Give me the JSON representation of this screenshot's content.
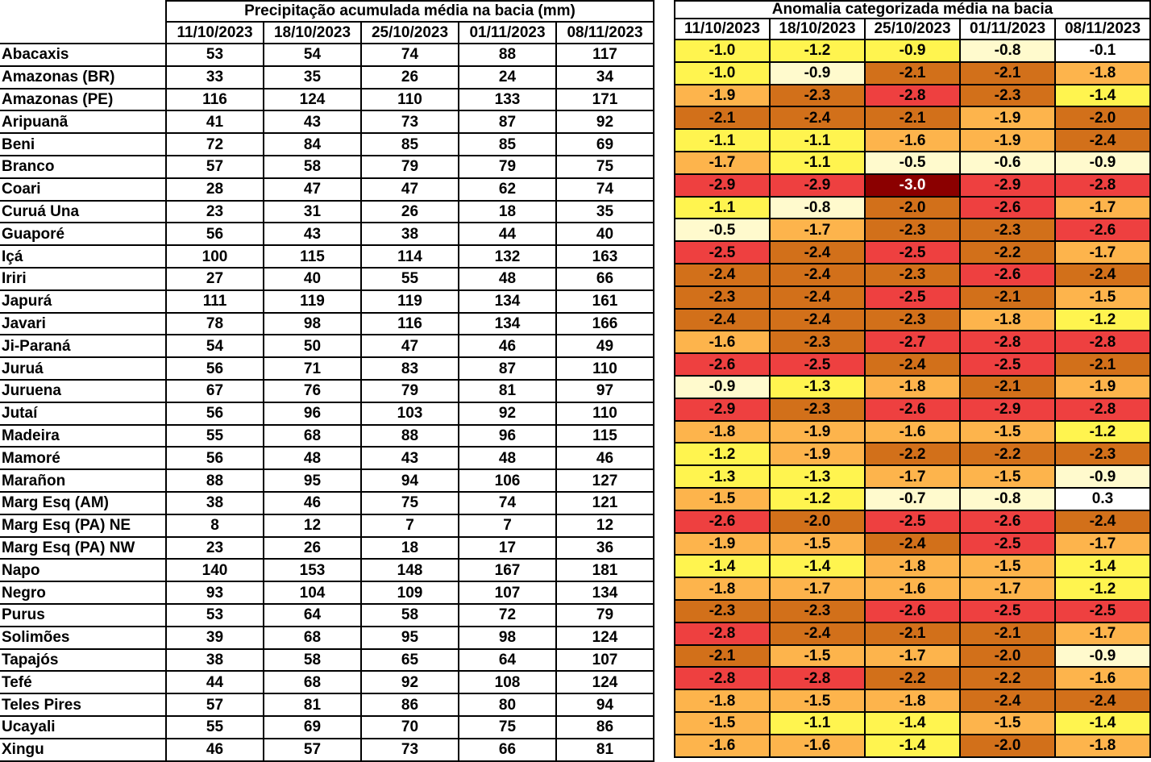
{
  "precip_table": {
    "title": "Precipitação acumulada média na bacia (mm)",
    "dates": [
      "11/10/2023",
      "18/10/2023",
      "25/10/2023",
      "01/11/2023",
      "08/11/2023"
    ]
  },
  "anomaly_table": {
    "title": "Anomalia categorizada média na bacia",
    "dates": [
      "11/10/2023",
      "18/10/2023",
      "25/10/2023",
      "01/11/2023",
      "08/11/2023"
    ]
  },
  "category_colors": {
    "white": "#ffffff",
    "cream": "#fffacd",
    "yellow": "#fff44f",
    "lorange": "#fdb44c",
    "dorange": "#d2701a",
    "red": "#ee4040",
    "dred": "#8b0000"
  },
  "rows": [
    {
      "name": "Abacaxis",
      "precip": [
        "53",
        "54",
        "74",
        "88",
        "117"
      ],
      "anom": [
        "-1.0",
        "-1.2",
        "-0.9",
        "-0.8",
        "-0.1"
      ],
      "cat": [
        "yellow",
        "yellow",
        "yellow",
        "cream",
        "white"
      ]
    },
    {
      "name": "Amazonas (BR)",
      "precip": [
        "33",
        "35",
        "26",
        "24",
        "34"
      ],
      "anom": [
        "-1.0",
        "-0.9",
        "-2.1",
        "-2.1",
        "-1.8"
      ],
      "cat": [
        "yellow",
        "cream",
        "dorange",
        "dorange",
        "lorange"
      ]
    },
    {
      "name": "Amazonas (PE)",
      "precip": [
        "116",
        "124",
        "110",
        "133",
        "171"
      ],
      "anom": [
        "-1.9",
        "-2.3",
        "-2.8",
        "-2.3",
        "-1.4"
      ],
      "cat": [
        "lorange",
        "dorange",
        "red",
        "dorange",
        "yellow"
      ]
    },
    {
      "name": "Aripuanã",
      "precip": [
        "41",
        "43",
        "73",
        "87",
        "92"
      ],
      "anom": [
        "-2.1",
        "-2.4",
        "-2.1",
        "-1.9",
        "-2.0"
      ],
      "cat": [
        "dorange",
        "dorange",
        "dorange",
        "lorange",
        "dorange"
      ]
    },
    {
      "name": "Beni",
      "precip": [
        "72",
        "84",
        "85",
        "85",
        "69"
      ],
      "anom": [
        "-1.1",
        "-1.1",
        "-1.6",
        "-1.9",
        "-2.4"
      ],
      "cat": [
        "yellow",
        "yellow",
        "lorange",
        "lorange",
        "dorange"
      ]
    },
    {
      "name": "Branco",
      "precip": [
        "57",
        "58",
        "79",
        "79",
        "75"
      ],
      "anom": [
        "-1.7",
        "-1.1",
        "-0.5",
        "-0.6",
        "-0.9"
      ],
      "cat": [
        "lorange",
        "yellow",
        "cream",
        "cream",
        "cream"
      ]
    },
    {
      "name": "Coari",
      "precip": [
        "28",
        "47",
        "47",
        "62",
        "74"
      ],
      "anom": [
        "-2.9",
        "-2.9",
        "-3.0",
        "-2.9",
        "-2.8"
      ],
      "cat": [
        "red",
        "red",
        "dred",
        "red",
        "red"
      ]
    },
    {
      "name": "Curuá Una",
      "precip": [
        "23",
        "31",
        "26",
        "18",
        "35"
      ],
      "anom": [
        "-1.1",
        "-0.8",
        "-2.0",
        "-2.6",
        "-1.7"
      ],
      "cat": [
        "yellow",
        "cream",
        "dorange",
        "red",
        "lorange"
      ]
    },
    {
      "name": "Guaporé",
      "precip": [
        "56",
        "43",
        "38",
        "44",
        "40"
      ],
      "anom": [
        "-0.5",
        "-1.7",
        "-2.3",
        "-2.3",
        "-2.6"
      ],
      "cat": [
        "cream",
        "lorange",
        "dorange",
        "dorange",
        "red"
      ]
    },
    {
      "name": "Içá",
      "precip": [
        "100",
        "115",
        "114",
        "132",
        "163"
      ],
      "anom": [
        "-2.5",
        "-2.4",
        "-2.5",
        "-2.2",
        "-1.7"
      ],
      "cat": [
        "red",
        "dorange",
        "red",
        "dorange",
        "lorange"
      ]
    },
    {
      "name": "Iriri",
      "precip": [
        "27",
        "40",
        "55",
        "48",
        "66"
      ],
      "anom": [
        "-2.4",
        "-2.4",
        "-2.3",
        "-2.6",
        "-2.4"
      ],
      "cat": [
        "dorange",
        "dorange",
        "dorange",
        "red",
        "dorange"
      ]
    },
    {
      "name": "Japurá",
      "precip": [
        "111",
        "119",
        "119",
        "134",
        "161"
      ],
      "anom": [
        "-2.3",
        "-2.4",
        "-2.5",
        "-2.1",
        "-1.5"
      ],
      "cat": [
        "dorange",
        "dorange",
        "red",
        "dorange",
        "lorange"
      ]
    },
    {
      "name": "Javari",
      "precip": [
        "78",
        "98",
        "116",
        "134",
        "166"
      ],
      "anom": [
        "-2.4",
        "-2.4",
        "-2.3",
        "-1.8",
        "-1.2"
      ],
      "cat": [
        "dorange",
        "dorange",
        "dorange",
        "lorange",
        "yellow"
      ]
    },
    {
      "name": "Ji-Paraná",
      "precip": [
        "54",
        "50",
        "47",
        "46",
        "49"
      ],
      "anom": [
        "-1.6",
        "-2.3",
        "-2.7",
        "-2.8",
        "-2.8"
      ],
      "cat": [
        "lorange",
        "dorange",
        "red",
        "red",
        "red"
      ]
    },
    {
      "name": "Juruá",
      "precip": [
        "56",
        "71",
        "83",
        "87",
        "110"
      ],
      "anom": [
        "-2.6",
        "-2.5",
        "-2.4",
        "-2.5",
        "-2.1"
      ],
      "cat": [
        "red",
        "red",
        "dorange",
        "red",
        "dorange"
      ]
    },
    {
      "name": "Juruena",
      "precip": [
        "67",
        "76",
        "79",
        "81",
        "97"
      ],
      "anom": [
        "-0.9",
        "-1.3",
        "-1.8",
        "-2.1",
        "-1.9"
      ],
      "cat": [
        "cream",
        "yellow",
        "lorange",
        "dorange",
        "lorange"
      ]
    },
    {
      "name": "Jutaí",
      "precip": [
        "56",
        "96",
        "103",
        "92",
        "110"
      ],
      "anom": [
        "-2.9",
        "-2.3",
        "-2.6",
        "-2.9",
        "-2.8"
      ],
      "cat": [
        "red",
        "dorange",
        "red",
        "red",
        "red"
      ]
    },
    {
      "name": "Madeira",
      "precip": [
        "55",
        "68",
        "88",
        "96",
        "115"
      ],
      "anom": [
        "-1.8",
        "-1.9",
        "-1.6",
        "-1.5",
        "-1.2"
      ],
      "cat": [
        "lorange",
        "lorange",
        "lorange",
        "lorange",
        "yellow"
      ]
    },
    {
      "name": "Mamoré",
      "precip": [
        "56",
        "48",
        "43",
        "48",
        "46"
      ],
      "anom": [
        "-1.2",
        "-1.9",
        "-2.2",
        "-2.2",
        "-2.3"
      ],
      "cat": [
        "yellow",
        "lorange",
        "dorange",
        "dorange",
        "dorange"
      ]
    },
    {
      "name": "Marañon",
      "precip": [
        "88",
        "95",
        "94",
        "106",
        "127"
      ],
      "anom": [
        "-1.3",
        "-1.3",
        "-1.7",
        "-1.5",
        "-0.9"
      ],
      "cat": [
        "yellow",
        "yellow",
        "lorange",
        "lorange",
        "cream"
      ]
    },
    {
      "name": "Marg Esq (AM)",
      "precip": [
        "38",
        "46",
        "75",
        "74",
        "121"
      ],
      "anom": [
        "-1.5",
        "-1.2",
        "-0.7",
        "-0.8",
        "0.3"
      ],
      "cat": [
        "lorange",
        "yellow",
        "cream",
        "cream",
        "white"
      ]
    },
    {
      "name": "Marg Esq (PA) NE",
      "precip": [
        "8",
        "12",
        "7",
        "7",
        "12"
      ],
      "anom": [
        "-2.6",
        "-2.0",
        "-2.5",
        "-2.6",
        "-2.4"
      ],
      "cat": [
        "red",
        "dorange",
        "red",
        "red",
        "dorange"
      ]
    },
    {
      "name": "Marg Esq (PA) NW",
      "precip": [
        "23",
        "26",
        "18",
        "17",
        "36"
      ],
      "anom": [
        "-1.9",
        "-1.5",
        "-2.4",
        "-2.5",
        "-1.7"
      ],
      "cat": [
        "lorange",
        "lorange",
        "dorange",
        "red",
        "lorange"
      ]
    },
    {
      "name": "Napo",
      "precip": [
        "140",
        "153",
        "148",
        "167",
        "181"
      ],
      "anom": [
        "-1.4",
        "-1.4",
        "-1.8",
        "-1.5",
        "-1.4"
      ],
      "cat": [
        "yellow",
        "yellow",
        "lorange",
        "lorange",
        "yellow"
      ]
    },
    {
      "name": "Negro",
      "precip": [
        "93",
        "104",
        "109",
        "107",
        "134"
      ],
      "anom": [
        "-1.8",
        "-1.7",
        "-1.6",
        "-1.7",
        "-1.2"
      ],
      "cat": [
        "lorange",
        "lorange",
        "lorange",
        "lorange",
        "yellow"
      ]
    },
    {
      "name": "Purus",
      "precip": [
        "53",
        "64",
        "58",
        "72",
        "79"
      ],
      "anom": [
        "-2.3",
        "-2.3",
        "-2.6",
        "-2.5",
        "-2.5"
      ],
      "cat": [
        "dorange",
        "dorange",
        "red",
        "red",
        "red"
      ]
    },
    {
      "name": "Solimões",
      "precip": [
        "39",
        "68",
        "95",
        "98",
        "124"
      ],
      "anom": [
        "-2.8",
        "-2.4",
        "-2.1",
        "-2.1",
        "-1.7"
      ],
      "cat": [
        "red",
        "dorange",
        "dorange",
        "dorange",
        "lorange"
      ]
    },
    {
      "name": "Tapajós",
      "precip": [
        "38",
        "58",
        "65",
        "64",
        "107"
      ],
      "anom": [
        "-2.1",
        "-1.5",
        "-1.7",
        "-2.0",
        "-0.9"
      ],
      "cat": [
        "dorange",
        "lorange",
        "lorange",
        "dorange",
        "cream"
      ]
    },
    {
      "name": "Tefé",
      "precip": [
        "44",
        "68",
        "92",
        "108",
        "124"
      ],
      "anom": [
        "-2.8",
        "-2.8",
        "-2.2",
        "-2.2",
        "-1.6"
      ],
      "cat": [
        "red",
        "red",
        "dorange",
        "dorange",
        "lorange"
      ]
    },
    {
      "name": "Teles Pires",
      "precip": [
        "57",
        "81",
        "86",
        "80",
        "94"
      ],
      "anom": [
        "-1.8",
        "-1.5",
        "-1.8",
        "-2.4",
        "-2.4"
      ],
      "cat": [
        "lorange",
        "lorange",
        "lorange",
        "dorange",
        "dorange"
      ]
    },
    {
      "name": "Ucayali",
      "precip": [
        "55",
        "69",
        "70",
        "75",
        "86"
      ],
      "anom": [
        "-1.5",
        "-1.1",
        "-1.4",
        "-1.5",
        "-1.4"
      ],
      "cat": [
        "lorange",
        "yellow",
        "yellow",
        "lorange",
        "yellow"
      ]
    },
    {
      "name": "Xingu",
      "precip": [
        "46",
        "57",
        "73",
        "66",
        "81"
      ],
      "anom": [
        "-1.6",
        "-1.6",
        "-1.4",
        "-2.0",
        "-1.8"
      ],
      "cat": [
        "lorange",
        "lorange",
        "yellow",
        "dorange",
        "lorange"
      ]
    }
  ]
}
